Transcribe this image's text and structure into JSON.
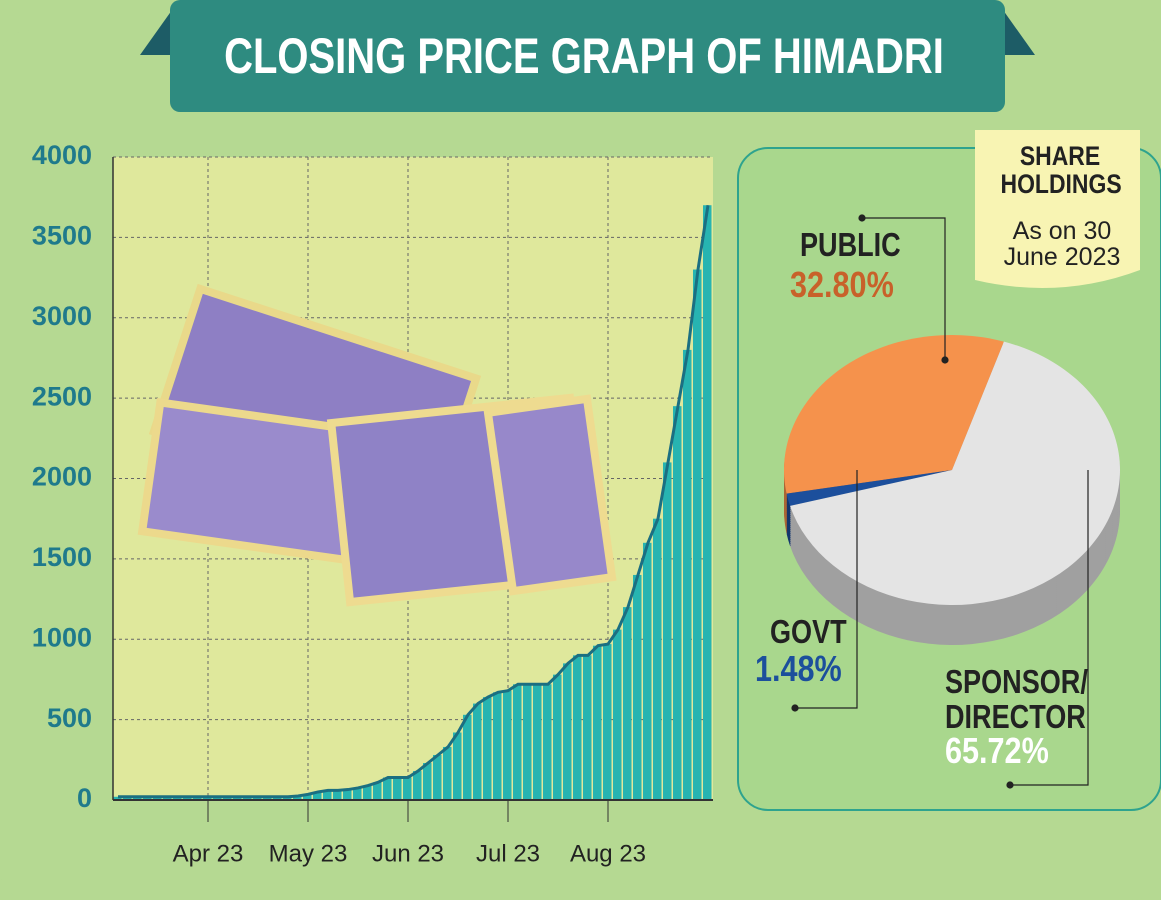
{
  "chart_data": [
    {
      "type": "bar",
      "title": "CLOSING PRICE GRAPH OF HIMADRI",
      "color": "#27b4b1",
      "line_color": "#1b6f82",
      "categories": [
        null,
        null,
        null,
        null,
        null,
        null,
        null,
        null,
        null,
        "Apr 23",
        null,
        null,
        null,
        null,
        null,
        null,
        null,
        null,
        null,
        "May 23",
        null,
        null,
        null,
        null,
        null,
        null,
        null,
        null,
        null,
        "Jun 23",
        null,
        null,
        null,
        null,
        null,
        null,
        null,
        null,
        null,
        "Jul 23",
        null,
        null,
        null,
        null,
        null,
        null,
        null,
        null,
        null,
        "Aug 23",
        null,
        null,
        null,
        null,
        null,
        null,
        null,
        null,
        null,
        null
      ],
      "values": [
        20,
        20,
        20,
        20,
        20,
        20,
        20,
        20,
        20,
        20,
        20,
        20,
        20,
        20,
        20,
        20,
        20,
        20,
        25,
        35,
        50,
        60,
        60,
        65,
        75,
        90,
        110,
        140,
        140,
        140,
        180,
        230,
        280,
        330,
        420,
        530,
        600,
        640,
        670,
        680,
        720,
        720,
        720,
        720,
        780,
        850,
        900,
        900,
        960,
        970,
        1060,
        1200,
        1400,
        1600,
        1750,
        2100,
        2450,
        2800,
        3300,
        3700
      ],
      "ylim": [
        0,
        4000
      ],
      "yticks": [
        0,
        500,
        1000,
        1500,
        2000,
        2500,
        3000,
        3500,
        4000
      ],
      "grid": true
    },
    {
      "type": "pie",
      "title": "SHARE HOLDINGS",
      "subtitle": "As on 30 June 2023",
      "categories": [
        "PUBLIC",
        "GOVT",
        "SPONSOR/ DIRECTOR"
      ],
      "values": [
        32.8,
        1.48,
        65.72
      ],
      "value_labels": [
        "32.80%",
        "1.48%",
        "65.72%"
      ],
      "colors": [
        "#f5924c",
        "#1c4f9c",
        "#e4e4e4"
      ],
      "label_colors": [
        "#c8612a",
        "#1c4f9c",
        "#ffffff"
      ]
    }
  ]
}
